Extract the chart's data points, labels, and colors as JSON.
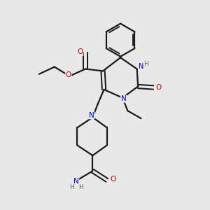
{
  "background_color": "#e8e8e8",
  "atom_color_N": "#0000cc",
  "atom_color_O": "#cc0000",
  "atom_color_H": "#557777",
  "bond_color": "#1a1a1a",
  "bond_width": 1.6,
  "fig_width": 3.0,
  "fig_height": 3.0,
  "dpi": 100,
  "xlim": [
    0,
    10
  ],
  "ylim": [
    0,
    10
  ]
}
